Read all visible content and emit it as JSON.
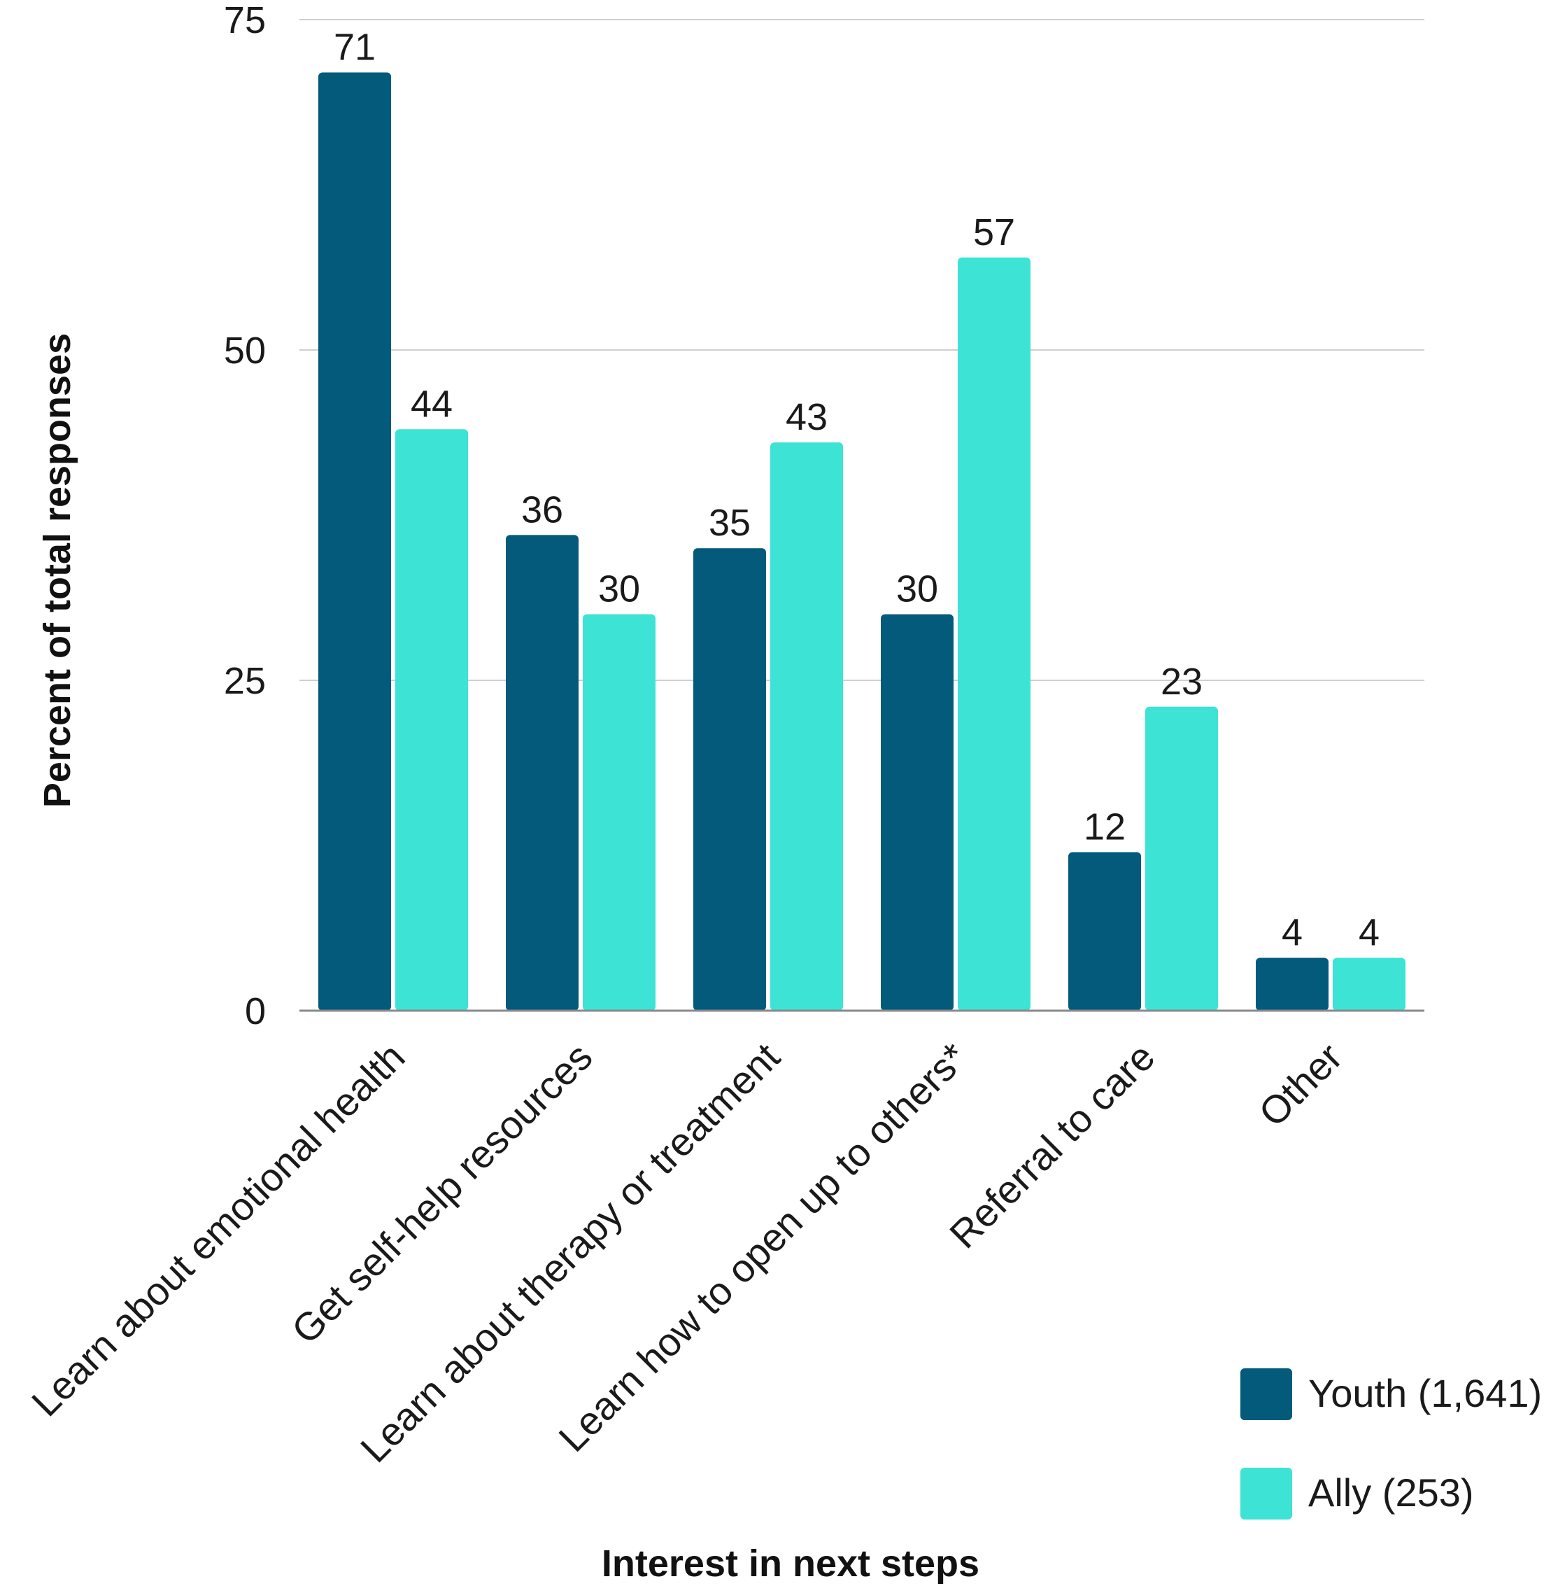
{
  "chart_data": {
    "type": "bar",
    "categories": [
      "Learn about emotional health",
      "Get self-help resources",
      "Learn about therapy or treatment",
      "Learn how to open up to others*",
      "Referral to care",
      "Other"
    ],
    "series": [
      {
        "name": "Youth (1,641)",
        "color": "#035a7a",
        "values": [
          71,
          36,
          35,
          30,
          12,
          4
        ]
      },
      {
        "name": "Ally (253)",
        "color": "#3de3d5",
        "values": [
          44,
          30,
          43,
          57,
          23,
          4
        ]
      }
    ],
    "yticks": [
      0,
      25,
      50,
      75
    ],
    "ylim": [
      0,
      75
    ],
    "xlabel": "Interest in next steps",
    "ylabel": "Percent of total responses",
    "grid": true,
    "legend": "bottom-right"
  }
}
